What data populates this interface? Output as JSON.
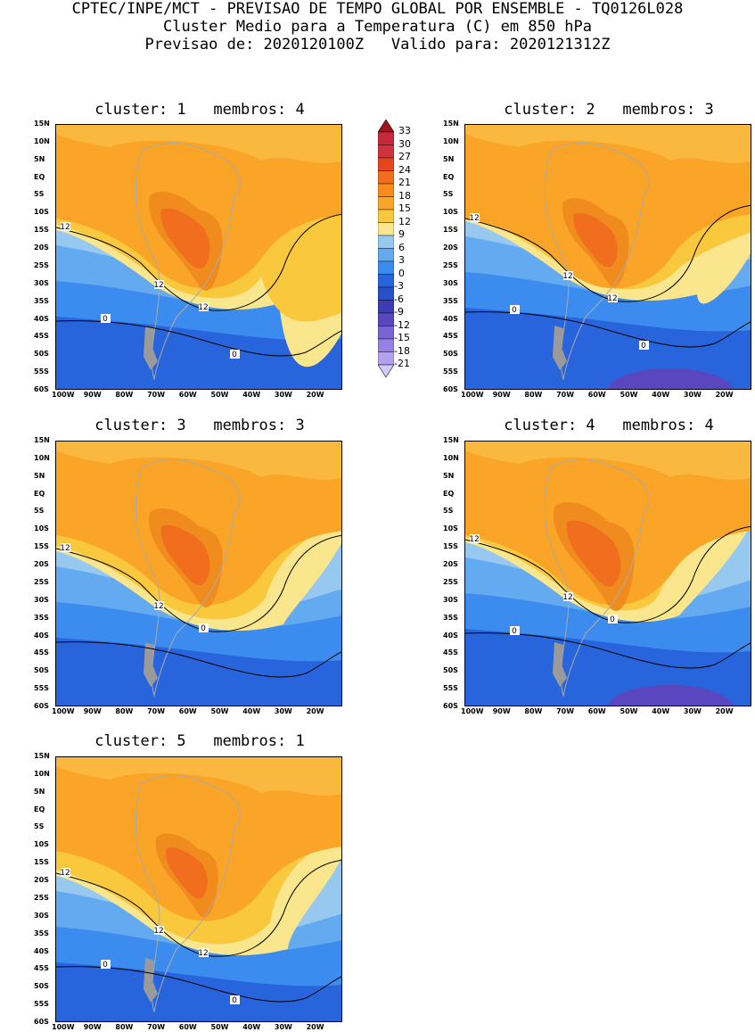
{
  "header": {
    "line1": "CPTEC/INPE/MCT - PREVISAO DE TEMPO GLOBAL POR ENSEMBLE - TQ0126L028",
    "line2": "Cluster Medio para a Temperatura (C) em 850 hPa",
    "line3": "Previsao de: 2020120100Z   Valido para: 2020121312Z"
  },
  "lat_labels": [
    "15N",
    "10N",
    "5N",
    "EQ",
    "5S",
    "10S",
    "15S",
    "20S",
    "25S",
    "30S",
    "35S",
    "40S",
    "45S",
    "50S",
    "55S",
    "60S"
  ],
  "lon_labels": [
    "100W",
    "90W",
    "80W",
    "70W",
    "60W",
    "50W",
    "40W",
    "30W",
    "20W"
  ],
  "colorbar": {
    "labels": [
      "33",
      "30",
      "27",
      "24",
      "21",
      "18",
      "15",
      "12",
      "9",
      "6",
      "3",
      "0",
      "-3",
      "-6",
      "-9",
      "-12",
      "-15",
      "-18",
      "-21"
    ],
    "colors": [
      "#a0141e",
      "#c8283c",
      "#d2323c",
      "#e6461e",
      "#f06e1e",
      "#fa8c1e",
      "#faa528",
      "#fac83c",
      "#fae68c",
      "#96c8f0",
      "#64aaf0",
      "#3c8cf0",
      "#2864dc",
      "#2850c8",
      "#3c3cb4",
      "#5a46be",
      "#7864d2",
      "#9682e6",
      "#b4a0f0",
      "#d2c8fa"
    ]
  },
  "panels": [
    {
      "title": "cluster: 1   membros: 4",
      "contour_labels": [
        "12",
        "12",
        "12",
        "0",
        "0"
      ]
    },
    {
      "title": "cluster: 2   membros: 3",
      "contour_labels": [
        "12",
        "12",
        "12",
        "0",
        "0"
      ]
    },
    {
      "title": "cluster: 3   membros: 3",
      "contour_labels": [
        "12",
        "12",
        "0"
      ]
    },
    {
      "title": "cluster: 4   membros: 4",
      "contour_labels": [
        "12",
        "12",
        "0",
        "0"
      ]
    },
    {
      "title": "cluster: 5   membros: 1",
      "contour_labels": [
        "12",
        "12",
        "12",
        "0",
        "0"
      ]
    }
  ]
}
